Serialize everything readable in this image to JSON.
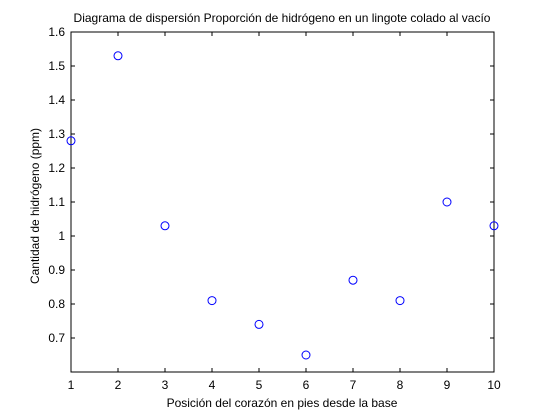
{
  "chart_data": {
    "type": "scatter",
    "title": "Diagrama de dispersión Proporción de hidrógeno en un lingote colado al vacío",
    "xlabel": "Posición del corazón en pies desde la base",
    "ylabel": "Cantidad de hidrógeno (ppm)",
    "xlim": [
      1,
      10
    ],
    "ylim": [
      0.6,
      1.6
    ],
    "xticks": [
      1,
      2,
      3,
      4,
      5,
      6,
      7,
      8,
      9,
      10
    ],
    "yticks": [
      0.7,
      0.8,
      0.9,
      1,
      1.1,
      1.2,
      1.3,
      1.4,
      1.5,
      1.6
    ],
    "ytick_labels": [
      "0.7",
      "0.8",
      "0.9",
      "1",
      "1.1",
      "1.2",
      "1.3",
      "1.4",
      "1.5",
      "1.6"
    ],
    "grid": false,
    "marker": "circle-open",
    "marker_color": "#0000ff",
    "series": [
      {
        "x": [
          1,
          2,
          3,
          4,
          5,
          6,
          7,
          8,
          9,
          10
        ],
        "y": [
          1.28,
          1.53,
          1.03,
          0.81,
          0.74,
          0.65,
          0.87,
          0.81,
          1.1,
          1.03
        ]
      }
    ]
  }
}
